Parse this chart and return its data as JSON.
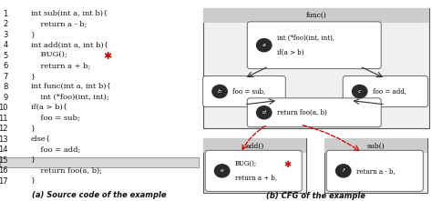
{
  "lines": [
    [
      "1",
      "int sub(int a, int b){"
    ],
    [
      "2",
      "    return a - b;"
    ],
    [
      "3",
      "}"
    ],
    [
      "4",
      "int add(int a, int b){"
    ],
    [
      "5",
      "    BUG();"
    ],
    [
      "6",
      "    return a + b;"
    ],
    [
      "7",
      "}"
    ],
    [
      "8",
      "int func(int a, int b){"
    ],
    [
      "9",
      "    int (*foo)(int, int);"
    ],
    [
      "10",
      "if(a > b){"
    ],
    [
      "11",
      "    foo = sub;"
    ],
    [
      "12",
      "}"
    ],
    [
      "13",
      "else{"
    ],
    [
      "14",
      "    foo = add;"
    ],
    [
      "15",
      "}"
    ],
    [
      "16",
      "    return foo(a, b);"
    ],
    [
      "17",
      "}"
    ]
  ],
  "highlight_line_idx": 15,
  "caption_left": "(a) Source code of the example",
  "caption_right": "(b) CFG of the example",
  "func_title": "func()",
  "add_title": "add()",
  "sub_title": "sub()",
  "node_a_line1": "int (*foo)(int, int),",
  "node_a_line2": "if(a > b)",
  "node_b_text": "foo = sub,",
  "node_c_text": "foo = add,",
  "node_d_text": "return foo(a, b)",
  "node_e_line1": "BUG();",
  "node_e_line2": "return a + b,",
  "node_f_text": "return a - b,",
  "bg_color": "#ffffff",
  "header_fill": "#cccccc",
  "outer_fill": "#f0f0f0",
  "node_fill": "#ffffff",
  "node_edge": "#666666",
  "outer_edge": "#555555",
  "arrow_color": "#333333",
  "dash_arrow_color": "#cc0000",
  "bug_color": "#cc0000",
  "node_circle_color": "#2a2a2a",
  "text_color": "#111111",
  "highlight_fill": "#d8d8d8",
  "highlight_edge": "#888888"
}
